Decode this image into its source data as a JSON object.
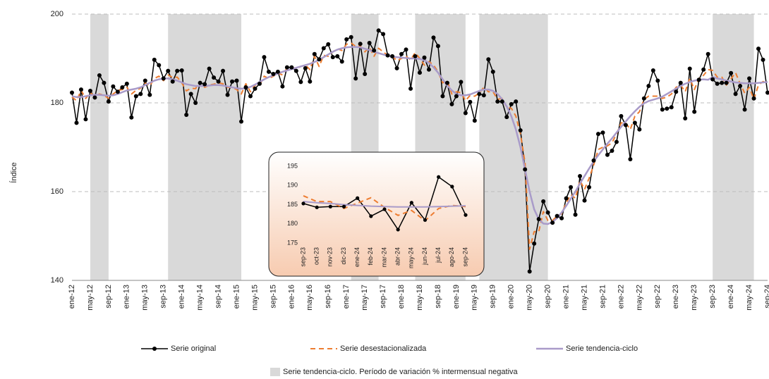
{
  "chart_data": [
    {
      "type": "line",
      "y_label": "Índice",
      "categories": [
        "ene-12",
        null,
        null,
        null,
        "may-12",
        null,
        null,
        null,
        "sep-12",
        null,
        null,
        null,
        "ene-13",
        null,
        null,
        null,
        "may-13",
        null,
        null,
        null,
        "sep-13",
        null,
        null,
        null,
        "ene-14",
        null,
        null,
        null,
        "may-14",
        null,
        null,
        null,
        "sep-14",
        null,
        null,
        null,
        "ene-15",
        null,
        null,
        null,
        "may-15",
        null,
        null,
        null,
        "sep-15",
        null,
        null,
        null,
        "ene-16",
        null,
        null,
        null,
        "may-16",
        null,
        null,
        null,
        "sep-16",
        null,
        null,
        null,
        "ene-17",
        null,
        null,
        null,
        "may-17",
        null,
        null,
        null,
        "sep-17",
        null,
        null,
        null,
        "ene-18",
        null,
        null,
        null,
        "may-18",
        null,
        null,
        null,
        "sep-18",
        null,
        null,
        null,
        "ene-19",
        null,
        null,
        null,
        "may-19",
        null,
        null,
        null,
        "sep-19",
        null,
        null,
        null,
        "ene-20",
        null,
        null,
        null,
        "may-20",
        null,
        null,
        null,
        "sep-20",
        null,
        null,
        null,
        "ene-21",
        null,
        null,
        null,
        "may-21",
        null,
        null,
        null,
        "sep-21",
        null,
        null,
        null,
        "ene-22",
        null,
        null,
        null,
        "may-22",
        null,
        null,
        null,
        "sep-22",
        null,
        null,
        null,
        "ene-23",
        null,
        null,
        null,
        "may-23",
        null,
        null,
        null,
        "sep-23",
        null,
        null,
        null,
        "ene-24",
        null,
        null,
        null,
        "may-24",
        null,
        null,
        null,
        "sep-24"
      ],
      "series": [
        {
          "name": "Serie original",
          "color": "#000000",
          "marker": "circle",
          "dash": false,
          "width": 1.5,
          "values": [
            182.3,
            175.5,
            183,
            176.3,
            182.7,
            181.2,
            186.2,
            184.5,
            180.3,
            183.7,
            182.5,
            183.5,
            184.3,
            176.7,
            181.5,
            182,
            185,
            181.8,
            189.7,
            188.5,
            185.5,
            187.2,
            184.8,
            187.2,
            187.3,
            177.3,
            182,
            180,
            184.5,
            184.2,
            187.7,
            185.7,
            184.8,
            187.2,
            181.8,
            184.8,
            185,
            175.8,
            183.5,
            181.5,
            183.2,
            184.3,
            190.3,
            187,
            186.5,
            187,
            183.7,
            188,
            188,
            187.2,
            184.7,
            187.8,
            184.8,
            191,
            189.8,
            192.3,
            193.2,
            190.3,
            190.5,
            189.3,
            194.3,
            194.8,
            185.5,
            193.3,
            186.5,
            193.5,
            191.8,
            196.3,
            195.5,
            190.7,
            190.5,
            187.8,
            191,
            192,
            183.2,
            190.5,
            186.8,
            190.2,
            187.5,
            194.7,
            192.8,
            181.5,
            184.5,
            179.7,
            181.5,
            184.7,
            177.7,
            180.2,
            176,
            182,
            181.7,
            189.8,
            187,
            180.3,
            180.3,
            176.8,
            179.7,
            180.3,
            173.8,
            165,
            142,
            148.3,
            153.8,
            157.8,
            155.3,
            153,
            154.5,
            154,
            158.5,
            161,
            154.8,
            163.5,
            158,
            161,
            167,
            173,
            173.3,
            168.3,
            169.2,
            171.2,
            177,
            175,
            167.3,
            175.5,
            174,
            181,
            183.8,
            187.3,
            185,
            178.5,
            178.7,
            179,
            182.5,
            184.5,
            176.5,
            187.7,
            178,
            185.2,
            187.5,
            191,
            185.3,
            184.3,
            184.5,
            184.5,
            186.7,
            182,
            183.8,
            178.5,
            185.5,
            181,
            192.2,
            189.7,
            182.3
          ]
        },
        {
          "name": "Serie desestacionalizada",
          "color": "#ED7D31",
          "marker": "none",
          "dash": true,
          "width": 2,
          "values": [
            181.3,
            180.5,
            182.8,
            181,
            182.3,
            181.5,
            182,
            181.7,
            181,
            182,
            182.8,
            183,
            183.5,
            182,
            182.8,
            183.3,
            184.5,
            183.8,
            185.5,
            186,
            185,
            186.3,
            185.7,
            185.8,
            184.5,
            182.7,
            183.3,
            183.2,
            184.8,
            183.5,
            184,
            184.2,
            184.5,
            184.3,
            183.5,
            183.5,
            183,
            182,
            184.3,
            182.5,
            184,
            184,
            186,
            185.5,
            186,
            186.7,
            186.3,
            187.8,
            188,
            187.7,
            188.2,
            188.5,
            187.5,
            190.5,
            188.2,
            190.7,
            190.5,
            191.5,
            192.2,
            191.8,
            193.2,
            193.5,
            192.7,
            192.8,
            191.5,
            192.5,
            190.5,
            192.3,
            191.5,
            190.7,
            190.5,
            189.5,
            190,
            190.5,
            189.7,
            191.3,
            190,
            188.5,
            189.3,
            188.5,
            187,
            184.5,
            185,
            182,
            182.5,
            182.3,
            180.5,
            181.7,
            181.5,
            182.2,
            183.5,
            182.5,
            182.5,
            180.8,
            181,
            179,
            178.8,
            177,
            173,
            166.5,
            147,
            151,
            151,
            155.5,
            153.5,
            153.5,
            154.5,
            155,
            157.5,
            159.3,
            158.5,
            162.5,
            160.5,
            163,
            166,
            169.5,
            170,
            170.3,
            171,
            173,
            175.5,
            175.5,
            174,
            177,
            178,
            180.8,
            181.5,
            181.5,
            181.5,
            181,
            181.3,
            182,
            183.5,
            184,
            182.5,
            185.5,
            183,
            185.5,
            186.2,
            187.5,
            187.3,
            185.8,
            185.8,
            184,
            185.4,
            186.8,
            184.3,
            182.2,
            183.5,
            180.8,
            184,
            184.8,
            184.5
          ]
        },
        {
          "name": "Serie tendencia-ciclo",
          "color": "#A99BC9",
          "marker": "none",
          "dash": false,
          "width": 2.5,
          "values": [
            181.5,
            181.3,
            181.3,
            181.5,
            181.7,
            181.8,
            181.8,
            181.7,
            181.6,
            181.7,
            182,
            182.4,
            182.8,
            183,
            183.2,
            183.5,
            184,
            184.5,
            185,
            185.3,
            185.5,
            185.5,
            185.3,
            185,
            184.6,
            184.2,
            184,
            183.8,
            183.8,
            183.8,
            183.9,
            184,
            184,
            183.9,
            183.7,
            183.5,
            183.3,
            183.2,
            183.3,
            183.6,
            184.1,
            184.7,
            185.3,
            185.8,
            186.2,
            186.6,
            187,
            187.3,
            187.6,
            187.9,
            188.2,
            188.5,
            188.8,
            189.2,
            189.7,
            190.3,
            190.9,
            191.5,
            192,
            192.3,
            192.5,
            192.6,
            192.6,
            192.5,
            192.2,
            191.9,
            191.5,
            191.2,
            190.9,
            190.6,
            190.4,
            190.3,
            190.2,
            190.1,
            190,
            190,
            189.9,
            189.6,
            189,
            188,
            186.8,
            185.3,
            183.9,
            182.8,
            182,
            181.7,
            181.7,
            181.9,
            182.3,
            182.7,
            183,
            183,
            182.7,
            182,
            180.8,
            179.2,
            177,
            174,
            170,
            165,
            160,
            156,
            153.8,
            152.8,
            152.7,
            153.2,
            154,
            155.3,
            156.8,
            158.4,
            160,
            161.8,
            163.5,
            165.2,
            166.8,
            168.2,
            169.5,
            170.8,
            172,
            173.3,
            174.6,
            175.8,
            177,
            178.1,
            179.1,
            179.9,
            180.4,
            180.7,
            181,
            181.4,
            182,
            182.6,
            183.2,
            183.8,
            184.3,
            184.7,
            185,
            185.2,
            185.3,
            185.2,
            185.8,
            185.5,
            185.3,
            185,
            184.8,
            184.6,
            184.5,
            184.4,
            184.4,
            184.4,
            184.5,
            184.6,
            184.7
          ]
        }
      ],
      "ylim": [
        140,
        200
      ],
      "yticks": [
        140,
        160,
        180,
        200
      ],
      "grid": true,
      "shaded_periods": [
        [
          4,
          8
        ],
        [
          21,
          37
        ],
        [
          61,
          67
        ],
        [
          75,
          86
        ],
        [
          89,
          104
        ],
        [
          140,
          149
        ]
      ],
      "shaded_color": "#d9d9d9",
      "shaded_label": "Serie tendencia-ciclo. Período de variación % intermensual negativa"
    },
    {
      "type": "line",
      "categories": [
        "sep-23",
        "oct-23",
        "nov-23",
        "dic-23",
        "ene-24",
        "feb-24",
        "mar-24",
        "abr-24",
        "may-24",
        "jun-24",
        "jul-24",
        "ago-24",
        "sep-24"
      ],
      "series": [
        {
          "color": "#000000",
          "marker": "circle",
          "dash": false,
          "width": 1.5,
          "values": [
            185.3,
            184.3,
            184.5,
            184.5,
            186.7,
            182,
            183.8,
            178.5,
            185.5,
            181,
            192.2,
            189.7,
            182.3
          ]
        },
        {
          "color": "#ED7D31",
          "marker": "none",
          "dash": true,
          "width": 2,
          "values": [
            187.3,
            185.8,
            185.8,
            184,
            185.4,
            186.8,
            184.3,
            182.2,
            183.5,
            180.8,
            184,
            184.8,
            184.5
          ]
        },
        {
          "color": "#A99BC9",
          "marker": "none",
          "dash": false,
          "width": 2,
          "values": [
            185.8,
            185.5,
            185.3,
            185,
            184.8,
            184.6,
            184.5,
            184.4,
            184.4,
            184.4,
            184.5,
            184.6,
            184.7
          ]
        }
      ],
      "ylim": [
        175,
        195
      ],
      "yticks": [
        175,
        180,
        185,
        190,
        195
      ],
      "grid": false
    }
  ]
}
